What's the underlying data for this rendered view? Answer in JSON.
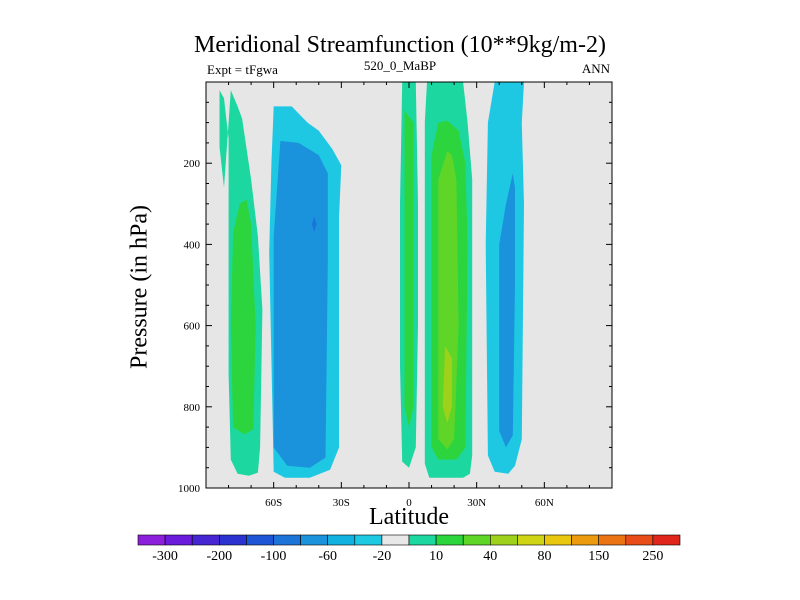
{
  "chart_data": {
    "type": "heatmap",
    "title": "Meridional Streamfunction (10**9kg/m-2)",
    "subtitle_left": "Expt = tFgwa",
    "subtitle_center": "520_0_MaBP",
    "subtitle_right": "ANN",
    "xlabel": "Latitude",
    "ylabel": "Pressure (in hPa)",
    "xlim": [
      -90,
      90
    ],
    "ylim": [
      1000,
      0
    ],
    "x_ticks": [
      {
        "value": -60,
        "label": "60S"
      },
      {
        "value": -30,
        "label": "30S"
      },
      {
        "value": 0,
        "label": "0"
      },
      {
        "value": 30,
        "label": "30N"
      },
      {
        "value": 60,
        "label": "60N"
      }
    ],
    "y_ticks": [
      {
        "value": 200,
        "label": "200"
      },
      {
        "value": 400,
        "label": "400"
      },
      {
        "value": 600,
        "label": "600"
      },
      {
        "value": 800,
        "label": "800"
      },
      {
        "value": 1000,
        "label": "1000"
      }
    ],
    "colorbar": {
      "colors": [
        "#8c1fdc",
        "#6a1bdc",
        "#4626d2",
        "#2c32cf",
        "#1e55d6",
        "#1c74d8",
        "#1a93dc",
        "#11b2e0",
        "#1ec9e2",
        "#e8e8e8",
        "#1cd8a0",
        "#2bd63c",
        "#5ed628",
        "#9ed21a",
        "#cfd414",
        "#e8c70e",
        "#ec9a0e",
        "#ec7312",
        "#e84c18",
        "#e0261c"
      ],
      "labels": [
        "-300",
        "-200",
        "-100",
        "-60",
        "-20",
        "10",
        "40",
        "80",
        "150",
        "250"
      ]
    },
    "regions": [
      {
        "name": "sh-ferrel-outer",
        "value": 10,
        "color": "#1dd7a1",
        "points": [
          [
            -84,
            20
          ],
          [
            -82,
            40
          ],
          [
            -80,
            140
          ],
          [
            -80,
            270
          ],
          [
            -80,
            720
          ],
          [
            -79,
            930
          ],
          [
            -76,
            965
          ],
          [
            -71,
            970
          ],
          [
            -67,
            962
          ],
          [
            -66,
            900
          ],
          [
            -65,
            560
          ],
          [
            -67,
            380
          ],
          [
            -70,
            240
          ],
          [
            -74,
            90
          ],
          [
            -76,
            60
          ],
          [
            -79,
            20
          ],
          [
            -80,
            100
          ],
          [
            -82,
            260
          ],
          [
            -84,
            160
          ]
        ]
      },
      {
        "name": "sh-ferrel-inner",
        "value": 40,
        "color": "#2cd53e",
        "points": [
          [
            -75,
            300
          ],
          [
            -78,
            370
          ],
          [
            -79,
            600
          ],
          [
            -78,
            850
          ],
          [
            -73,
            868
          ],
          [
            -69,
            855
          ],
          [
            -68,
            600
          ],
          [
            -70,
            350
          ],
          [
            -72,
            290
          ]
        ]
      },
      {
        "name": "sh-hadley-outer",
        "value": -20,
        "color": "#1ec8e3",
        "points": [
          [
            -60,
            60
          ],
          [
            -61,
            200
          ],
          [
            -62,
            420
          ],
          [
            -60,
            960
          ],
          [
            -55,
            975
          ],
          [
            -44,
            975
          ],
          [
            -35,
            955
          ],
          [
            -31,
            900
          ],
          [
            -31,
            330
          ],
          [
            -30,
            205
          ],
          [
            -34,
            165
          ],
          [
            -40,
            120
          ],
          [
            -45,
            100
          ],
          [
            -52,
            60
          ]
        ]
      },
      {
        "name": "sh-hadley-inner",
        "value": -60,
        "color": "#1a93dc",
        "points": [
          [
            -57,
            145
          ],
          [
            -60,
            380
          ],
          [
            -60,
            900
          ],
          [
            -54,
            945
          ],
          [
            -44,
            950
          ],
          [
            -37,
            925
          ],
          [
            -36,
            450
          ],
          [
            -36,
            225
          ],
          [
            -40,
            180
          ],
          [
            -49,
            150
          ]
        ]
      },
      {
        "name": "sh-hadley-core",
        "value": -100,
        "color": "#1c74d8",
        "points": [
          [
            -42,
            330
          ],
          [
            -43,
            350
          ],
          [
            -42,
            370
          ],
          [
            -41,
            350
          ]
        ]
      },
      {
        "name": "eq-column-outer",
        "value": 10,
        "color": "#1dd7a1",
        "points": [
          [
            -3,
            0
          ],
          [
            -4,
            300
          ],
          [
            -4,
            700
          ],
          [
            -3,
            935
          ],
          [
            0,
            950
          ],
          [
            3,
            900
          ],
          [
            4,
            600
          ],
          [
            4,
            300
          ],
          [
            3,
            0
          ]
        ]
      },
      {
        "name": "eq-column-inner",
        "value": 40,
        "color": "#2cd53e",
        "points": [
          [
            -2,
            70
          ],
          [
            -2,
            300
          ],
          [
            -2,
            800
          ],
          [
            0,
            850
          ],
          [
            2,
            800
          ],
          [
            2,
            400
          ],
          [
            2,
            100
          ]
        ]
      },
      {
        "name": "nh-hadley-outer",
        "value": 10,
        "color": "#1dd7a1",
        "points": [
          [
            8,
            0
          ],
          [
            7,
            100
          ],
          [
            7,
            240
          ],
          [
            7,
            940
          ],
          [
            9,
            975
          ],
          [
            14,
            975
          ],
          [
            24,
            975
          ],
          [
            27,
            965
          ],
          [
            28,
            920
          ],
          [
            28,
            240
          ],
          [
            26,
            100
          ],
          [
            24,
            0
          ]
        ]
      },
      {
        "name": "nh-hadley-mid",
        "value": 40,
        "color": "#2cd53e",
        "points": [
          [
            13,
            100
          ],
          [
            10,
            180
          ],
          [
            10,
            900
          ],
          [
            13,
            930
          ],
          [
            21,
            930
          ],
          [
            25,
            900
          ],
          [
            26,
            400
          ],
          [
            25,
            200
          ],
          [
            22,
            120
          ],
          [
            17,
            95
          ]
        ]
      },
      {
        "name": "nh-hadley-inner",
        "value": 80,
        "color": "#5fd528",
        "points": [
          [
            17,
            170
          ],
          [
            13,
            240
          ],
          [
            13,
            880
          ],
          [
            17,
            905
          ],
          [
            20,
            880
          ],
          [
            22,
            600
          ],
          [
            21,
            240
          ],
          [
            19,
            180
          ]
        ]
      },
      {
        "name": "nh-hadley-core",
        "value": 150,
        "color": "#9ed21a",
        "points": [
          [
            16,
            650
          ],
          [
            15,
            800
          ],
          [
            17,
            840
          ],
          [
            19,
            800
          ],
          [
            19,
            680
          ]
        ]
      },
      {
        "name": "nh-ferrel-outer",
        "value": -20,
        "color": "#1ec8e3",
        "points": [
          [
            38,
            0
          ],
          [
            35,
            100
          ],
          [
            34,
            400
          ],
          [
            35,
            920
          ],
          [
            38,
            960
          ],
          [
            44,
            965
          ],
          [
            47,
            945
          ],
          [
            50,
            880
          ],
          [
            51,
            300
          ],
          [
            50,
            100
          ],
          [
            51,
            0
          ]
        ]
      },
      {
        "name": "nh-ferrel-inner",
        "value": -60,
        "color": "#1a93dc",
        "points": [
          [
            43,
            300
          ],
          [
            40,
            400
          ],
          [
            40,
            860
          ],
          [
            43,
            900
          ],
          [
            46,
            870
          ],
          [
            47,
            500
          ],
          [
            47,
            260
          ],
          [
            46,
            225
          ]
        ]
      }
    ]
  }
}
